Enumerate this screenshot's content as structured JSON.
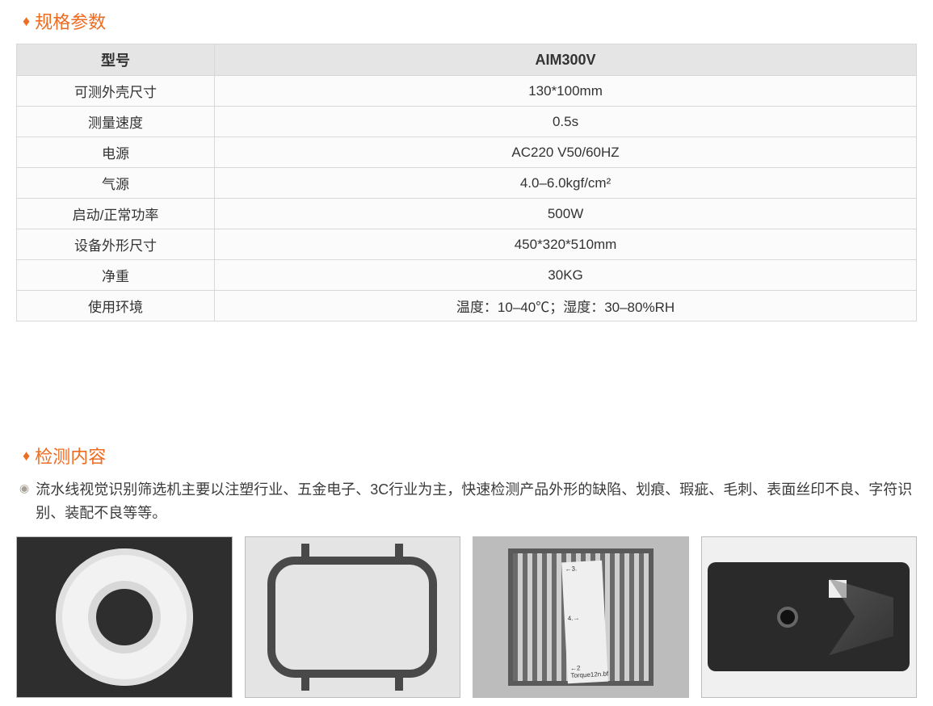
{
  "colors": {
    "accent": "#ef6b1f",
    "border": "#d8d8d8",
    "header_bg": "#e5e5e5",
    "cell_bg": "#fbfbfb",
    "text": "#333333"
  },
  "spec_section": {
    "title": "规格参数",
    "table": {
      "header": {
        "label": "型号",
        "value": "AIM300V"
      },
      "rows": [
        {
          "label": "可测外壳尺寸",
          "value": "130*100mm"
        },
        {
          "label": "测量速度",
          "value": "0.5s"
        },
        {
          "label": "电源",
          "value": "AC220 V50/60HZ"
        },
        {
          "label": "气源",
          "value": "4.0–6.0kgf/cm²"
        },
        {
          "label": "启动/正常功率",
          "value": "500W"
        },
        {
          "label": "设备外形尺寸",
          "value": "450*320*510mm"
        },
        {
          "label": "净重",
          "value": "30KG"
        },
        {
          "label": "使用环境",
          "value": "温度：10–40℃；湿度：30–80%RH"
        }
      ]
    }
  },
  "content_section": {
    "title": "检测内容",
    "description": "流水线视觉识别筛选机主要以注塑行业、五金电子、3C行业为主，快速检测产品外形的缺陷、划痕、瑕疵、毛刺、表面丝印不良、字符识别、装配不良等等。",
    "sample_labels": {
      "s3_line1": "←3.",
      "s3_line2": "4.→",
      "s3_line3": "←2  Torque12n.bf"
    }
  }
}
